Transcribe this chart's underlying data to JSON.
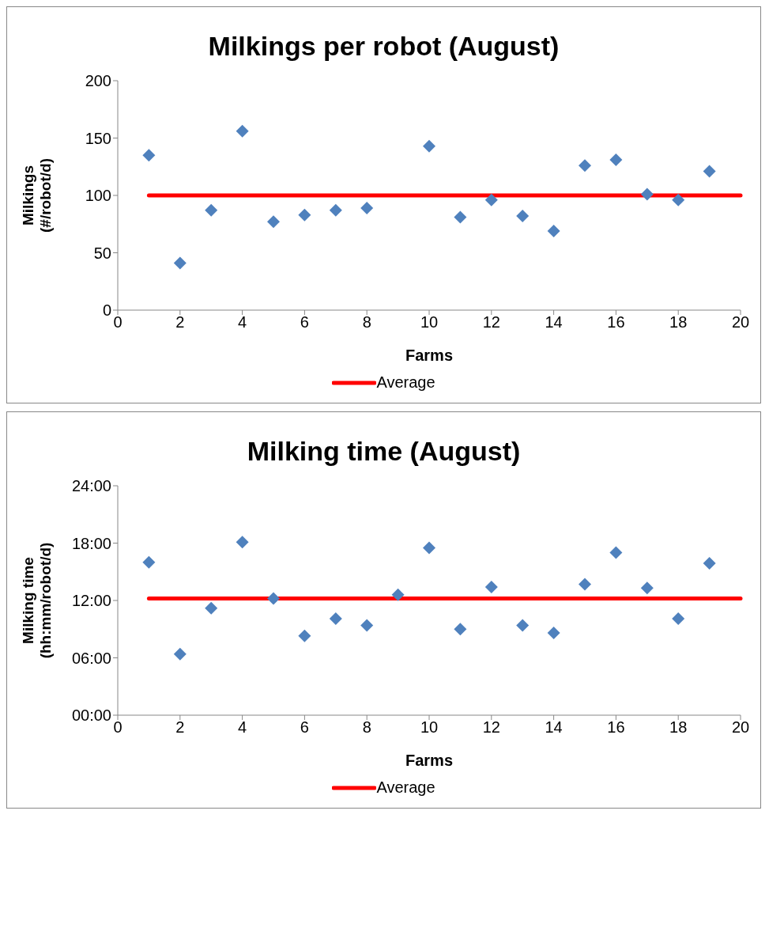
{
  "chart_data": [
    {
      "type": "scatter",
      "title": "Milkings per robot (August)",
      "xlabel": "Farms",
      "ylabel": "Milkings (#/robot/d)",
      "x": [
        1,
        2,
        3,
        4,
        5,
        6,
        7,
        8,
        9,
        10,
        11,
        12,
        13,
        14,
        15,
        16,
        17,
        18,
        19
      ],
      "xlim": [
        0,
        20
      ],
      "xticks": [
        0,
        2,
        4,
        6,
        8,
        10,
        12,
        14,
        16,
        18,
        20
      ],
      "ylim": [
        0,
        200
      ],
      "yticks": [
        0,
        50,
        100,
        150,
        200
      ],
      "legend": "bottom",
      "series": [
        {
          "color": "#4f81bd",
          "marker": "diamond",
          "values": [
            135,
            41,
            87,
            156,
            77,
            83,
            87,
            89,
            null,
            143,
            81,
            96,
            82,
            69,
            126,
            131,
            101,
            96,
            121
          ]
        }
      ],
      "ref_lines": [
        {
          "axis": "y",
          "value": 100,
          "label": "Average",
          "color": "#ff0000"
        }
      ]
    },
    {
      "type": "scatter",
      "title": "Milking time (August)",
      "xlabel": "Farms",
      "ylabel": "Milking time (hh:mm/robot/d)",
      "x": [
        1,
        2,
        3,
        4,
        5,
        6,
        7,
        8,
        9,
        10,
        11,
        12,
        13,
        14,
        15,
        16,
        17,
        18,
        19
      ],
      "xlim": [
        0,
        20
      ],
      "xticks": [
        0,
        2,
        4,
        6,
        8,
        10,
        12,
        14,
        16,
        18,
        20
      ],
      "ylim": [
        0,
        24
      ],
      "yticks": [
        {
          "value": 0,
          "label": "00:00"
        },
        {
          "value": 6,
          "label": "06:00"
        },
        {
          "value": 12,
          "label": "12:00"
        },
        {
          "value": 18,
          "label": "18:00"
        },
        {
          "value": 24,
          "label": "24:00"
        }
      ],
      "legend": "bottom",
      "series": [
        {
          "color": "#4f81bd",
          "marker": "diamond",
          "values": [
            16.0,
            6.4,
            11.2,
            18.1,
            12.2,
            8.3,
            10.1,
            9.4,
            12.6,
            17.5,
            9.0,
            13.4,
            9.4,
            8.6,
            13.7,
            17.0,
            13.3,
            10.1,
            15.9
          ]
        }
      ],
      "ref_lines": [
        {
          "axis": "y",
          "value": 12.2,
          "label": "Average",
          "color": "#ff0000"
        }
      ]
    }
  ]
}
